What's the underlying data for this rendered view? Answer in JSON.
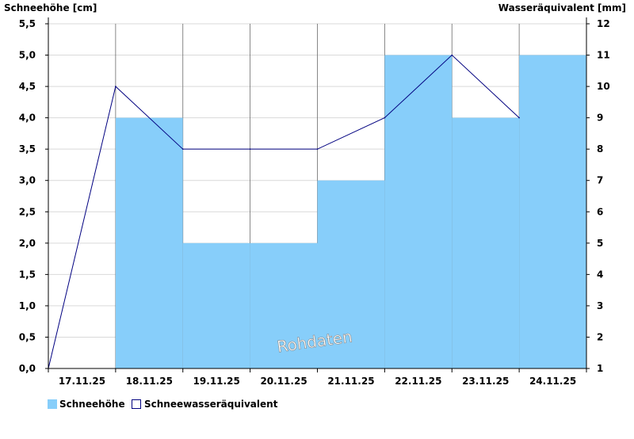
{
  "chart_data": {
    "type": "bar",
    "y_left_label": "Schneehöhe [cm]",
    "y_right_label": "Wasseräquivalent [mm]",
    "categories": [
      "17.11.25",
      "18.11.25",
      "19.11.25",
      "20.11.25",
      "21.11.25",
      "22.11.25",
      "23.11.25",
      "24.11.25"
    ],
    "ylim_left": [
      0,
      5.5
    ],
    "ylim_right": [
      1,
      12
    ],
    "left_ticks": [
      "0,0",
      "0,5",
      "1,0",
      "1,5",
      "2,0",
      "2,5",
      "3,0",
      "3,5",
      "4,0",
      "4,5",
      "5,0",
      "5,5"
    ],
    "right_ticks": [
      "1",
      "2",
      "3",
      "4",
      "5",
      "6",
      "7",
      "8",
      "9",
      "10",
      "11",
      "12"
    ],
    "grid": true,
    "bars": {
      "name": "Schneehöhe",
      "axis": "left",
      "color": "#87CEFA",
      "values": [
        0,
        4.0,
        2.0,
        2.0,
        3.0,
        5.0,
        4.0,
        5.0
      ]
    },
    "line": {
      "name": "Schneewasseräquivalent",
      "axis": "right",
      "color": "#000080",
      "points": [
        {
          "x": "17.11.25",
          "y": 1
        },
        {
          "x": "18.11.25",
          "y": 10
        },
        {
          "x": "19.11.25",
          "y": 8
        },
        {
          "x": "20.11.25",
          "y": 8
        },
        {
          "x": "21.11.25",
          "y": 8
        },
        {
          "x": "22.11.25",
          "y": 9
        },
        {
          "x": "23.11.25",
          "y": 11
        },
        {
          "x": "24.11.25",
          "y": 9
        }
      ]
    },
    "legend_position": "bottom-left",
    "watermark": "Rohdaten"
  }
}
